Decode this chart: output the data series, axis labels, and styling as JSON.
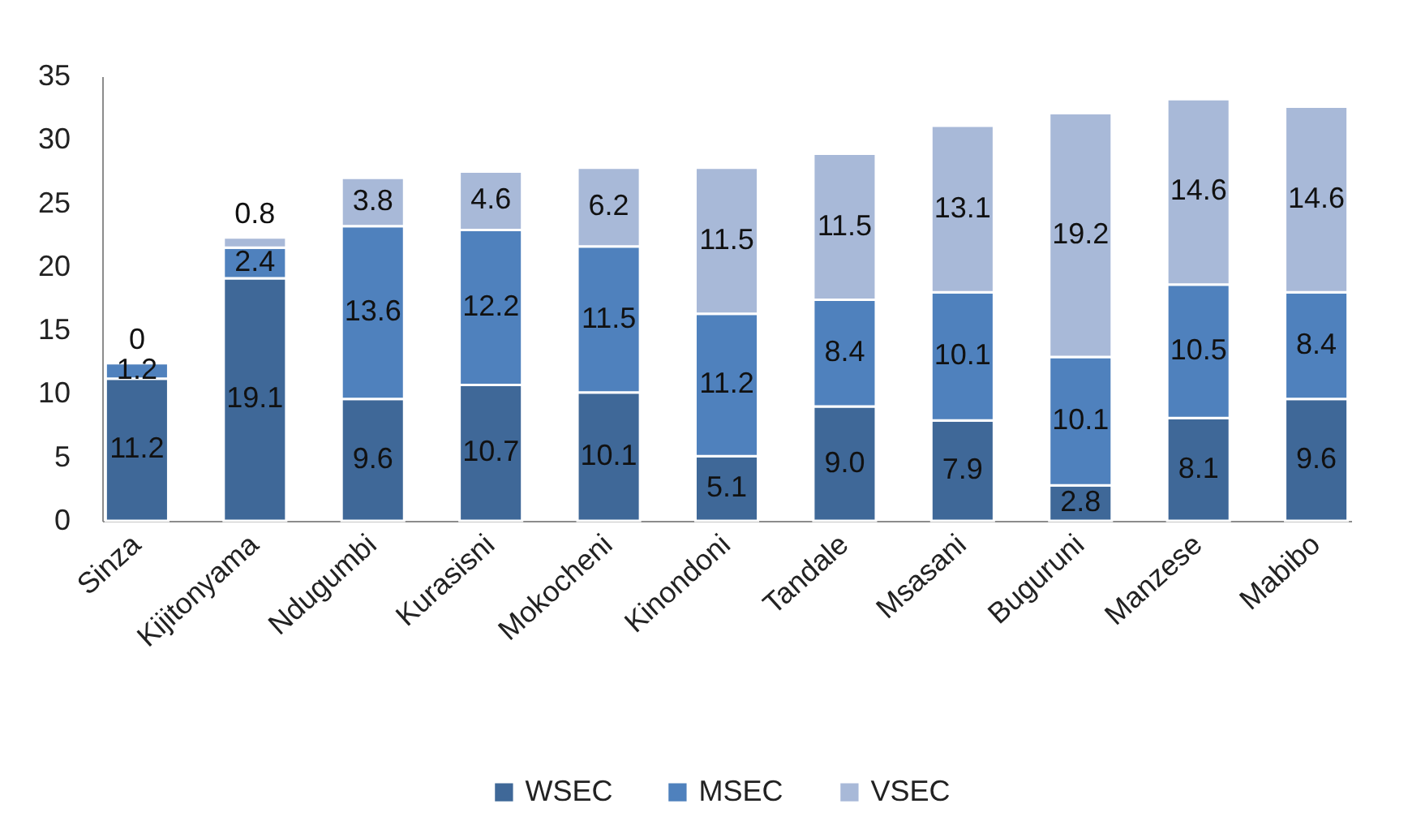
{
  "chart_data": {
    "type": "bar",
    "stacked": true,
    "categories": [
      "Sinza",
      "Kijitonyama",
      "Ndugumbi",
      "Kurasisni",
      "Mokocheni",
      "Kinondoni",
      "Tandale",
      "Msasani",
      "Buguruni",
      "Manzese",
      "Mabibo"
    ],
    "series": [
      {
        "name": "WSEC",
        "color": "#3f6898",
        "values": [
          11.2,
          19.1,
          9.6,
          10.7,
          10.1,
          5.1,
          9.0,
          7.9,
          2.8,
          8.1,
          9.6
        ],
        "value_labels": [
          "11.2",
          "19.1",
          "9.6",
          "10.7",
          "10.1",
          "5.1",
          "9.0",
          "7.9",
          "2.8",
          "8.1",
          "9.6"
        ]
      },
      {
        "name": "MSEC",
        "color": "#4f81bd",
        "values": [
          1.2,
          2.4,
          13.6,
          12.2,
          11.5,
          11.2,
          8.4,
          10.1,
          10.1,
          10.5,
          8.4
        ],
        "value_labels": [
          "1.2",
          "2.4",
          "13.6",
          "12.2",
          "11.5",
          "11.2",
          "8.4",
          "10.1",
          "10.1",
          "10.5",
          "8.4"
        ]
      },
      {
        "name": "VSEC",
        "color": "#a8b9d8",
        "values": [
          0,
          0.8,
          3.8,
          4.6,
          6.2,
          11.5,
          11.5,
          13.1,
          19.2,
          14.6,
          14.6
        ],
        "value_labels": [
          "0",
          "0.8",
          "3.8",
          "4.6",
          "6.2",
          "11.5",
          "11.5",
          "13.1",
          "19.2",
          "14.6",
          "14.6"
        ]
      }
    ],
    "ylim": [
      0,
      35
    ],
    "yticks": [
      0,
      5,
      10,
      15,
      20,
      25,
      30,
      35
    ],
    "grid": false,
    "legend": "bottom"
  }
}
